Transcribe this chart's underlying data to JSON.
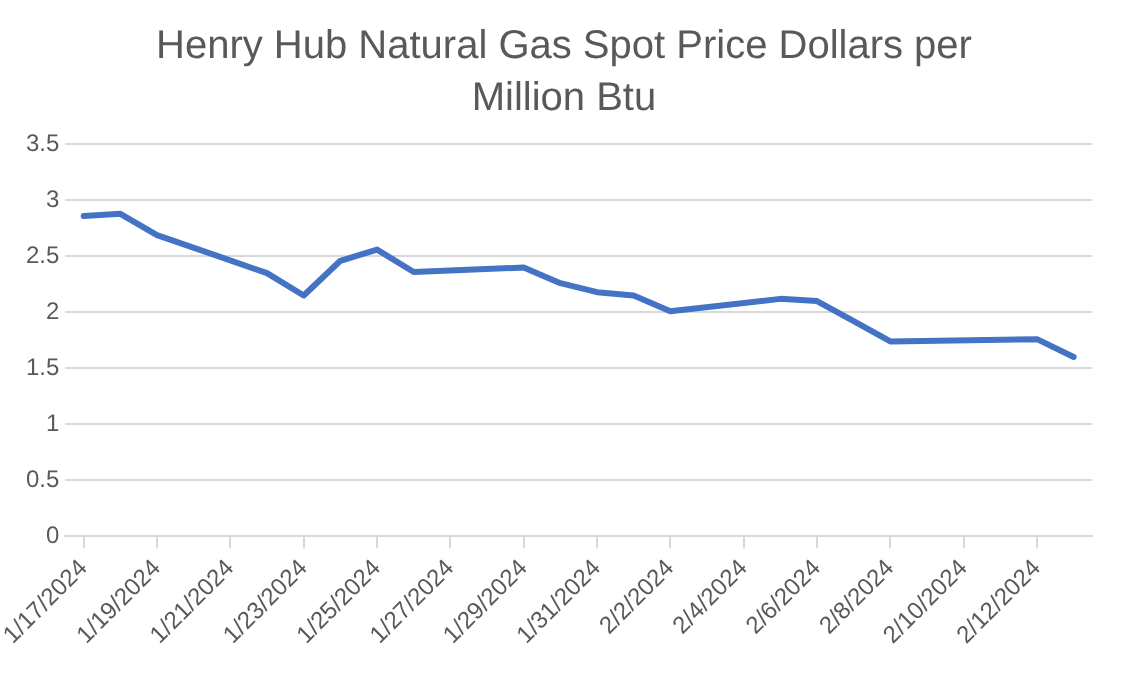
{
  "chart_data": {
    "type": "line",
    "title": "Henry Hub Natural Gas Spot Price Dollars per Million Btu",
    "x": [
      "2024-01-17",
      "2024-01-18",
      "2024-01-19",
      "2024-01-22",
      "2024-01-23",
      "2024-01-24",
      "2024-01-25",
      "2024-01-26",
      "2024-01-29",
      "2024-01-30",
      "2024-01-31",
      "2024-02-01",
      "2024-02-02",
      "2024-02-05",
      "2024-02-06",
      "2024-02-07",
      "2024-02-08",
      "2024-02-12",
      "2024-02-13"
    ],
    "series": [
      {
        "color": "#4472c4",
        "values": [
          2.86,
          2.88,
          2.69,
          2.35,
          2.15,
          2.46,
          2.56,
          2.36,
          2.4,
          2.26,
          2.18,
          2.15,
          2.01,
          2.12,
          2.1,
          1.92,
          1.74,
          1.76,
          1.6
        ]
      }
    ],
    "xlim": [
      "2024-01-16T12:00",
      "2024-02-13T12:00"
    ],
    "xticks": [
      {
        "value": "2024-01-17",
        "label": "1/17/2024"
      },
      {
        "value": "2024-01-19",
        "label": "1/19/2024"
      },
      {
        "value": "2024-01-21",
        "label": "1/21/2024"
      },
      {
        "value": "2024-01-23",
        "label": "1/23/2024"
      },
      {
        "value": "2024-01-25",
        "label": "1/25/2024"
      },
      {
        "value": "2024-01-27",
        "label": "1/27/2024"
      },
      {
        "value": "2024-01-29",
        "label": "1/29/2024"
      },
      {
        "value": "2024-01-31",
        "label": "1/31/2024"
      },
      {
        "value": "2024-02-02",
        "label": "2/2/2024"
      },
      {
        "value": "2024-02-04",
        "label": "2/4/2024"
      },
      {
        "value": "2024-02-06",
        "label": "2/6/2024"
      },
      {
        "value": "2024-02-08",
        "label": "2/8/2024"
      },
      {
        "value": "2024-02-10",
        "label": "2/10/2024"
      },
      {
        "value": "2024-02-12",
        "label": "2/12/2024"
      }
    ],
    "ylim": [
      0,
      3.5
    ],
    "yticks": [
      0,
      0.5,
      1,
      1.5,
      2,
      2.5,
      3,
      3.5
    ],
    "grid": "y",
    "legend": false,
    "marker": "none",
    "line_style": "solid"
  }
}
